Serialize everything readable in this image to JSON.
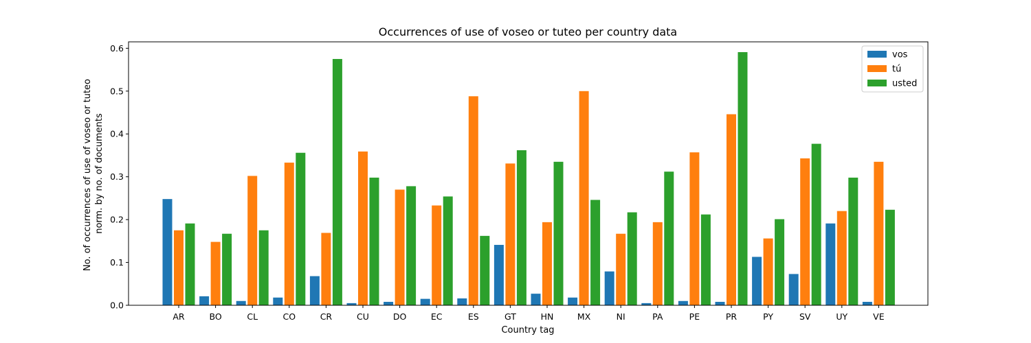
{
  "chart_data": {
    "type": "bar",
    "title": "Occurrences of use of voseo or tuteo per country data",
    "xlabel": "Country tag",
    "ylabel_lines": [
      "No. of occurrences of use of voseo or tuteo",
      "norm. by no. of documents"
    ],
    "ylim": [
      0,
      0.615
    ],
    "yticks": [
      0.0,
      0.1,
      0.2,
      0.3,
      0.4,
      0.5,
      0.6
    ],
    "categories": [
      "AR",
      "BO",
      "CL",
      "CO",
      "CR",
      "CU",
      "DO",
      "EC",
      "ES",
      "GT",
      "HN",
      "MX",
      "NI",
      "PA",
      "PE",
      "PR",
      "PY",
      "SV",
      "UY",
      "VE"
    ],
    "legend_position": "top-right",
    "grid": false,
    "series": [
      {
        "name": "vos",
        "color": "#1f77b4",
        "values": [
          0.248,
          0.021,
          0.01,
          0.018,
          0.068,
          0.005,
          0.008,
          0.015,
          0.016,
          0.141,
          0.027,
          0.018,
          0.079,
          0.005,
          0.01,
          0.008,
          0.113,
          0.073,
          0.191,
          0.008
        ]
      },
      {
        "name": "tú",
        "color": "#ff7f0e",
        "values": [
          0.175,
          0.148,
          0.302,
          0.333,
          0.169,
          0.359,
          0.27,
          0.233,
          0.488,
          0.331,
          0.194,
          0.5,
          0.167,
          0.194,
          0.357,
          0.446,
          0.156,
          0.343,
          0.22,
          0.335
        ]
      },
      {
        "name": "usted",
        "color": "#2ca02c",
        "values": [
          0.191,
          0.167,
          0.175,
          0.356,
          0.575,
          0.298,
          0.278,
          0.254,
          0.162,
          0.362,
          0.335,
          0.246,
          0.217,
          0.312,
          0.212,
          0.591,
          0.201,
          0.377,
          0.298,
          0.223
        ]
      }
    ]
  }
}
